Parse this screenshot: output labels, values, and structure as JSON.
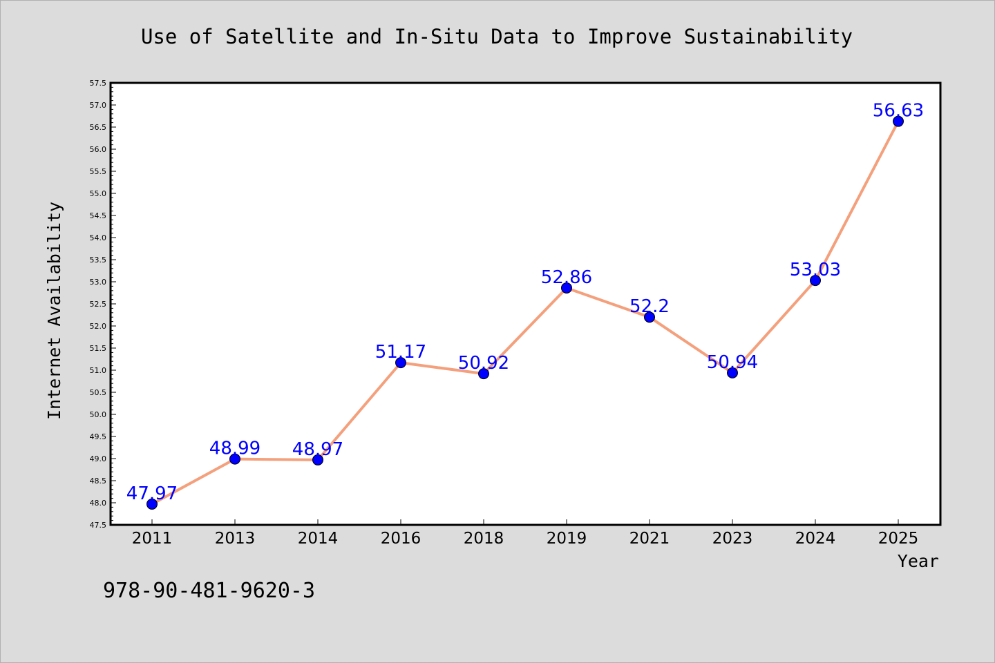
{
  "footer": {
    "isbn": "978-90-481-9620-3"
  },
  "chart_data": {
    "type": "line",
    "title": "Use of Satellite and In-Situ Data to Improve Sustainability",
    "xlabel": "Year",
    "ylabel": "Internet Availability",
    "categories": [
      "2011",
      "2013",
      "2014",
      "2016",
      "2018",
      "2019",
      "2021",
      "2023",
      "2024",
      "2025"
    ],
    "values": [
      47.97,
      48.99,
      48.97,
      51.17,
      50.92,
      52.86,
      52.2,
      50.94,
      53.03,
      56.63
    ],
    "data_labels": [
      "47.97",
      "48.99",
      "48.97",
      "51.17",
      "50.92",
      "52.86",
      "52.2",
      "50.94",
      "53.03",
      "56.63"
    ],
    "ylim": [
      47.5,
      57.5
    ],
    "ytick_step": 0.5,
    "grid": false,
    "legend": "none",
    "colors": {
      "line": "#f4a07c",
      "marker": "#0000ff",
      "label": "#0000ff",
      "plot_bg": "#ffffff",
      "figure_bg": "#dcdcdc"
    }
  }
}
